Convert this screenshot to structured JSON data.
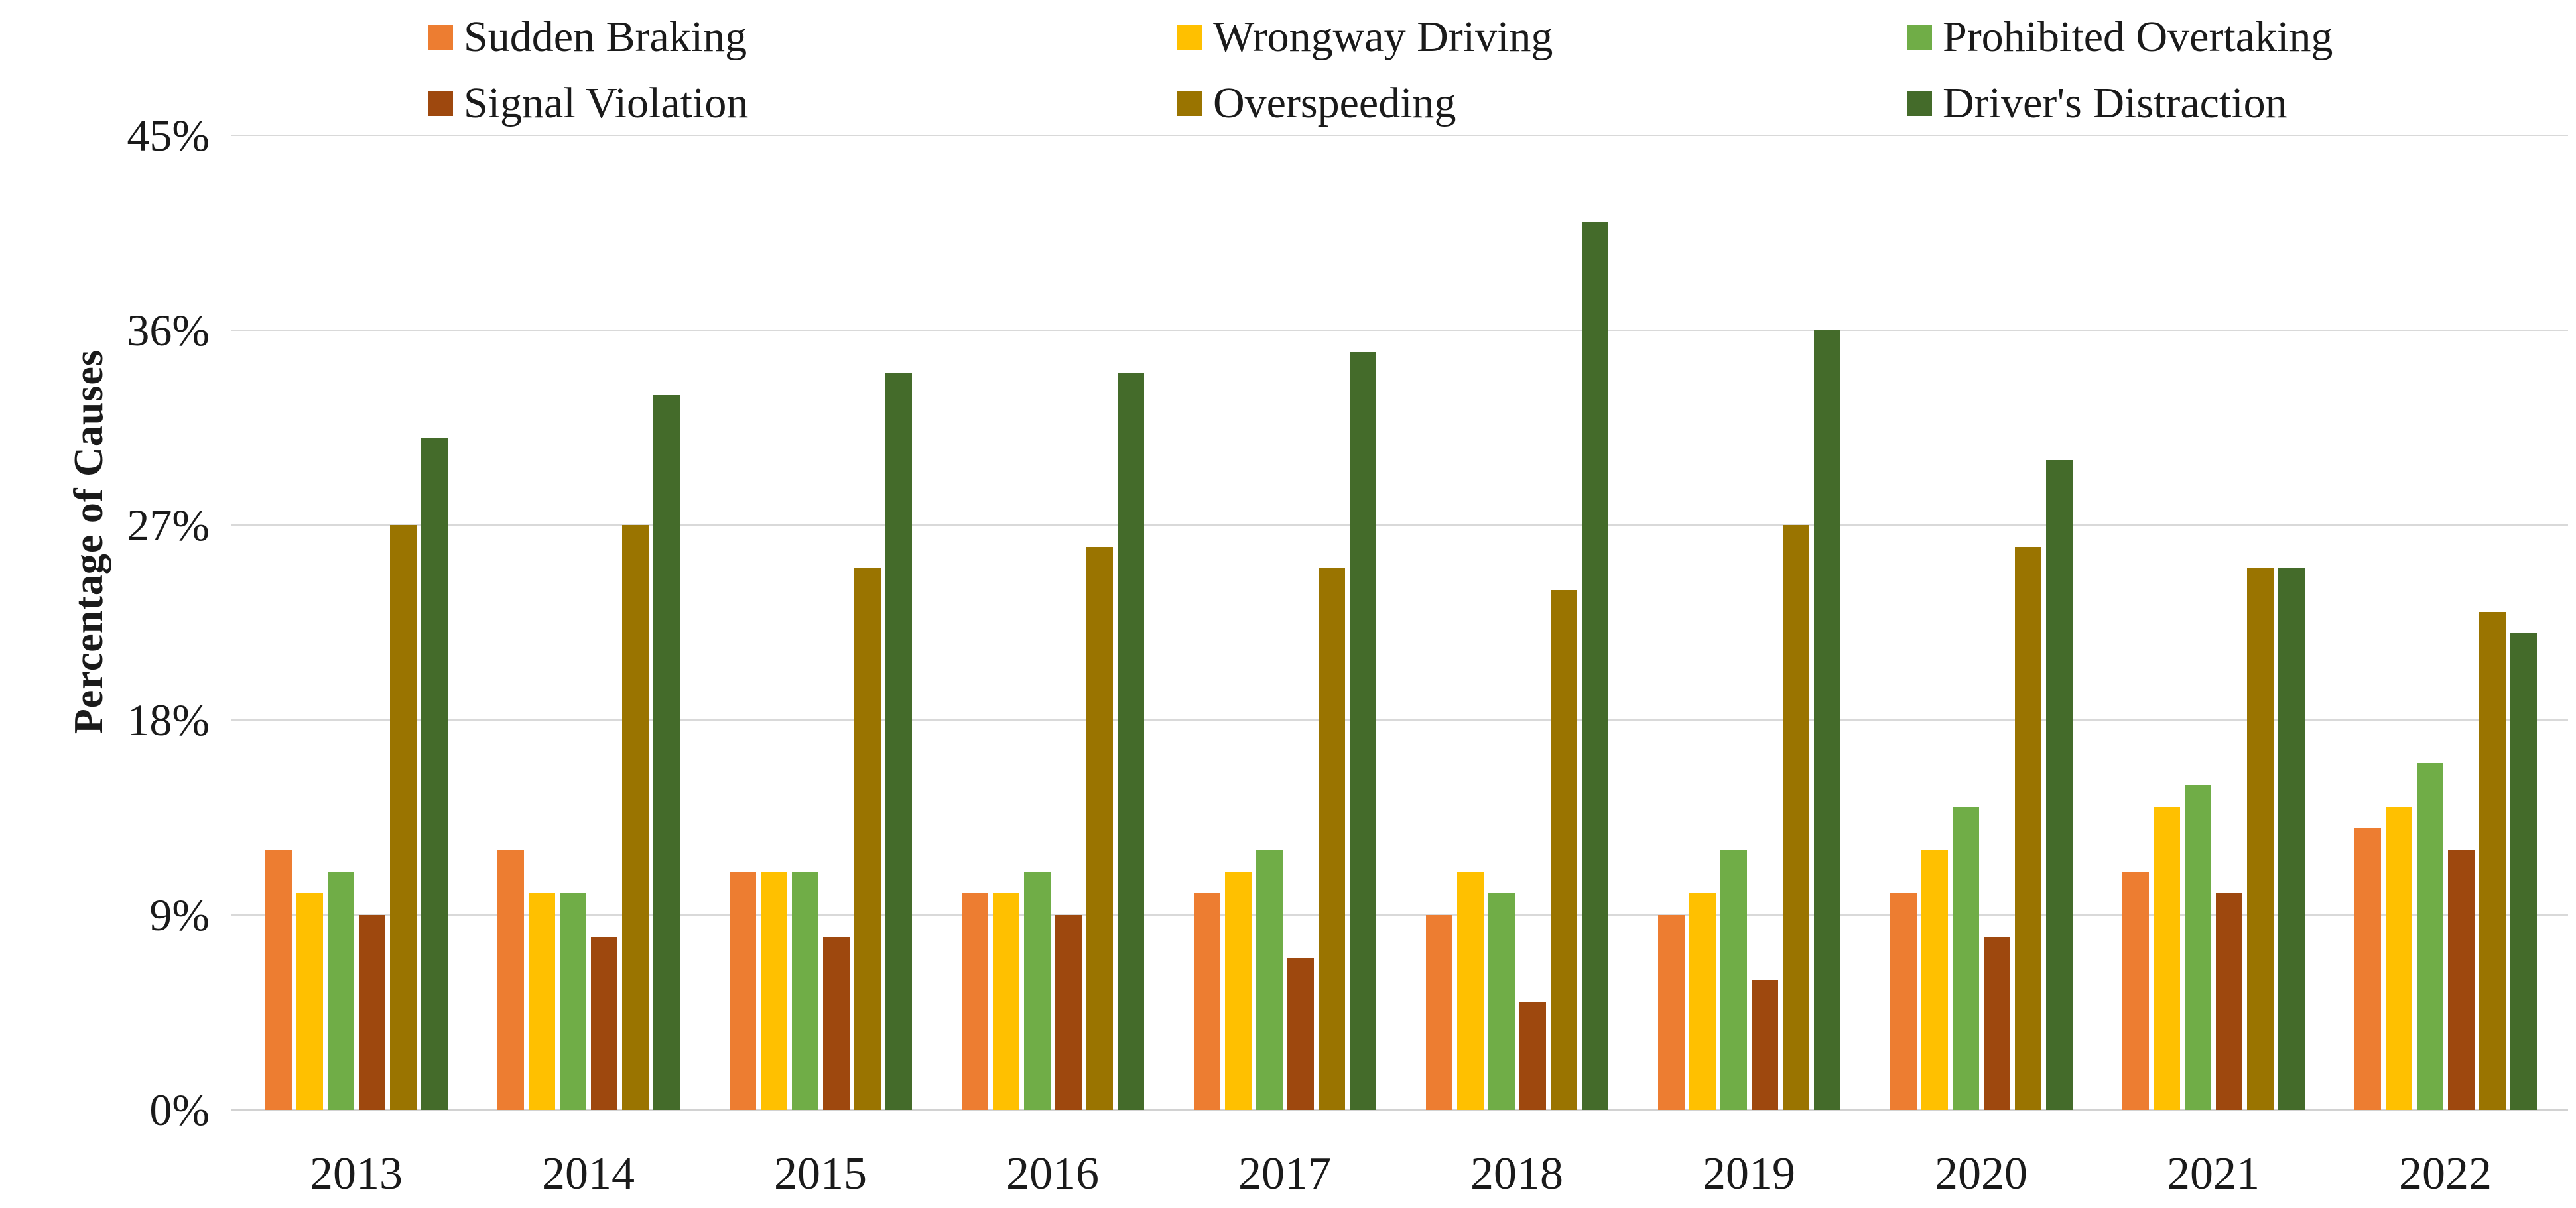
{
  "chart_data": {
    "type": "bar",
    "title": "",
    "xlabel": "",
    "ylabel": "Percentage of Causes",
    "ylim": [
      0,
      45
    ],
    "grid": true,
    "legend_position": "top",
    "y_ticks": [
      {
        "label": "0%",
        "value": 0
      },
      {
        "label": "9%",
        "value": 9
      },
      {
        "label": "18%",
        "value": 18
      },
      {
        "label": "27%",
        "value": 27
      },
      {
        "label": "36%",
        "value": 36
      },
      {
        "label": "45%",
        "value": 45
      }
    ],
    "categories": [
      "2013",
      "2014",
      "2015",
      "2016",
      "2017",
      "2018",
      "2019",
      "2020",
      "2021",
      "2022"
    ],
    "series": [
      {
        "name": "Sudden Braking",
        "color": "#ED7D31",
        "values": [
          12,
          12,
          11,
          10,
          10,
          9,
          9,
          10,
          11,
          13
        ]
      },
      {
        "name": "Wrongway Driving",
        "color": "#FFC000",
        "values": [
          10,
          10,
          11,
          10,
          11,
          11,
          10,
          12,
          14,
          14
        ]
      },
      {
        "name": "Prohibited Overtaking",
        "color": "#70AD47",
        "values": [
          11,
          10,
          11,
          11,
          12,
          10,
          12,
          14,
          15,
          16
        ]
      },
      {
        "name": "Signal Violation",
        "color": "#9E480E",
        "values": [
          9,
          8,
          8,
          9,
          7,
          5,
          6,
          8,
          10,
          12
        ]
      },
      {
        "name": "Overspeeding",
        "color": "#9A7400",
        "values": [
          27,
          27,
          25,
          26,
          25,
          24,
          27,
          26,
          25,
          23
        ]
      },
      {
        "name": "Driver's Distraction",
        "color": "#446B2A",
        "values": [
          31,
          33,
          34,
          34,
          35,
          41,
          36,
          30,
          25,
          22
        ]
      }
    ]
  }
}
